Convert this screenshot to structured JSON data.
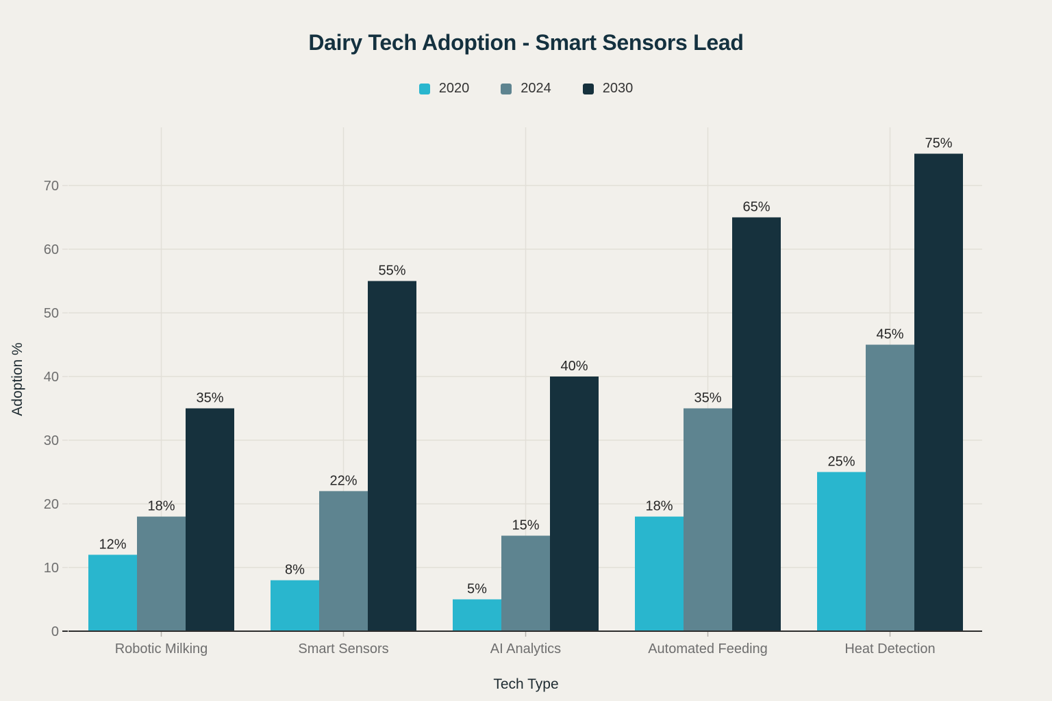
{
  "chart_data": {
    "type": "bar",
    "title": "Dairy Tech Adoption - Smart Sensors Lead",
    "xlabel": "Tech Type",
    "ylabel": "Adoption %",
    "categories": [
      "Robotic Milking",
      "Smart Sensors",
      "AI Analytics",
      "Automated Feeding",
      "Heat Detection"
    ],
    "series": [
      {
        "name": "2020",
        "color": "#29b6ce",
        "values": [
          12,
          8,
          5,
          18,
          25
        ],
        "labels": [
          "12%",
          "8%",
          "5%",
          "18%",
          "25%"
        ]
      },
      {
        "name": "2024",
        "color": "#5e8490",
        "values": [
          18,
          22,
          15,
          35,
          45
        ],
        "labels": [
          "18%",
          "22%",
          "15%",
          "35%",
          "45%"
        ]
      },
      {
        "name": "2030",
        "color": "#16313d",
        "values": [
          35,
          55,
          40,
          65,
          75
        ],
        "labels": [
          "35%",
          "55%",
          "40%",
          "65%",
          "75%"
        ]
      }
    ],
    "value_suffix": "%",
    "yticks": [
      0,
      10,
      20,
      30,
      40,
      50,
      60,
      70
    ],
    "ylim": [
      0,
      79
    ],
    "grid": true,
    "legend_position": "top-center"
  },
  "colors": {
    "background": "#f2f0eb",
    "title": "#14313f",
    "grid": "#e2dfd8",
    "axis_line": "#2d2d2d",
    "x_tick_mark": "#b5b2ac",
    "tick_label": "#6e6e6e",
    "value_label": "#262626",
    "axis_title": "#1e2b31",
    "legend_text": "#333333"
  }
}
